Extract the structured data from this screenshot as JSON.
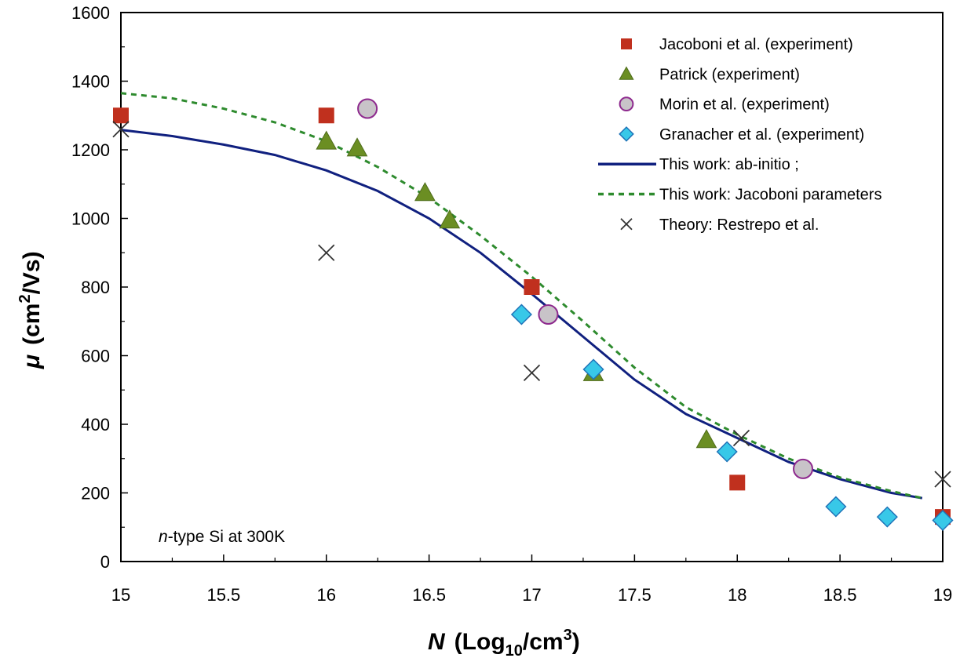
{
  "chart_data": {
    "type": "scatter",
    "xlim": [
      15,
      19
    ],
    "ylim": [
      0,
      1600
    ],
    "x_ticks": [
      15,
      15.5,
      16,
      16.5,
      17,
      17.5,
      18,
      18.5,
      19
    ],
    "x_tick_labels": [
      "15",
      "15.5",
      "16",
      "16.5",
      "17",
      "17.5",
      "18",
      "18.5",
      "19"
    ],
    "y_ticks": [
      0,
      200,
      400,
      600,
      800,
      1000,
      1200,
      1400,
      1600
    ],
    "y_tick_labels": [
      "0",
      "200",
      "400",
      "600",
      "800",
      "1000",
      "1200",
      "1400",
      "1600"
    ],
    "xlabel": {
      "var": "N",
      "text": "(Log",
      "sub": "10",
      "mid": "/cm",
      "sup": "3",
      "end": ")"
    },
    "ylabel": {
      "var": "μ",
      "text": "(cm",
      "sup": "2",
      "end": "/Vs)"
    },
    "annotation": {
      "italic": "n",
      "text": "-type Si at 300K"
    },
    "legend_position": "top-right",
    "series": [
      {
        "name": "Jacoboni et al. (experiment)",
        "kind": "marker",
        "marker": "square",
        "color": "#c0301e",
        "x": [
          15,
          16,
          17,
          18,
          19
        ],
        "y": [
          1300,
          1300,
          800,
          230,
          130
        ]
      },
      {
        "name": "Patrick (experiment)",
        "kind": "marker",
        "marker": "triangle",
        "color": "#6b8e23",
        "x": [
          16,
          16.15,
          16.48,
          16.6,
          17.3,
          17.85
        ],
        "y": [
          1225,
          1205,
          1075,
          995,
          550,
          355
        ]
      },
      {
        "name": "Morin et al. (experiment)",
        "kind": "marker",
        "marker": "circle",
        "color": "#c8c3c8",
        "stroke": "#8e2a8e",
        "x": [
          16.2,
          17.08,
          18.32
        ],
        "y": [
          1320,
          720,
          270
        ]
      },
      {
        "name": "Granacher et al. (experiment)",
        "kind": "marker",
        "marker": "diamond",
        "color": "#38c8e8",
        "stroke": "#1f73b8",
        "x": [
          16.95,
          17.3,
          17.95,
          18.48,
          18.73,
          19
        ],
        "y": [
          720,
          560,
          320,
          160,
          130,
          120
        ]
      },
      {
        "name": "This work: ab-initio ;",
        "kind": "line",
        "style": "solid",
        "color": "#10207f",
        "x": [
          15,
          15.25,
          15.5,
          15.75,
          16,
          16.25,
          16.5,
          16.75,
          17,
          17.25,
          17.5,
          17.75,
          18,
          18.25,
          18.5,
          18.75,
          18.9
        ],
        "y": [
          1258,
          1240,
          1215,
          1185,
          1140,
          1080,
          1000,
          900,
          780,
          655,
          530,
          430,
          360,
          290,
          240,
          200,
          185
        ]
      },
      {
        "name": "This work: Jacoboni parameters",
        "kind": "line",
        "style": "dashed",
        "color": "#2e8b2e",
        "x": [
          15,
          15.25,
          15.5,
          15.75,
          16,
          16.25,
          16.5,
          16.75,
          17,
          17.25,
          17.5,
          17.75,
          18,
          18.25,
          18.5,
          18.75,
          18.9
        ],
        "y": [
          1365,
          1350,
          1320,
          1280,
          1225,
          1150,
          1060,
          950,
          830,
          700,
          565,
          450,
          370,
          300,
          245,
          205,
          185
        ]
      },
      {
        "name": "Theory: Restrepo et al.",
        "kind": "marker",
        "marker": "x",
        "color": "#333333",
        "x": [
          15,
          16,
          17,
          18.02,
          19
        ],
        "y": [
          1260,
          900,
          550,
          360,
          240
        ]
      }
    ]
  }
}
